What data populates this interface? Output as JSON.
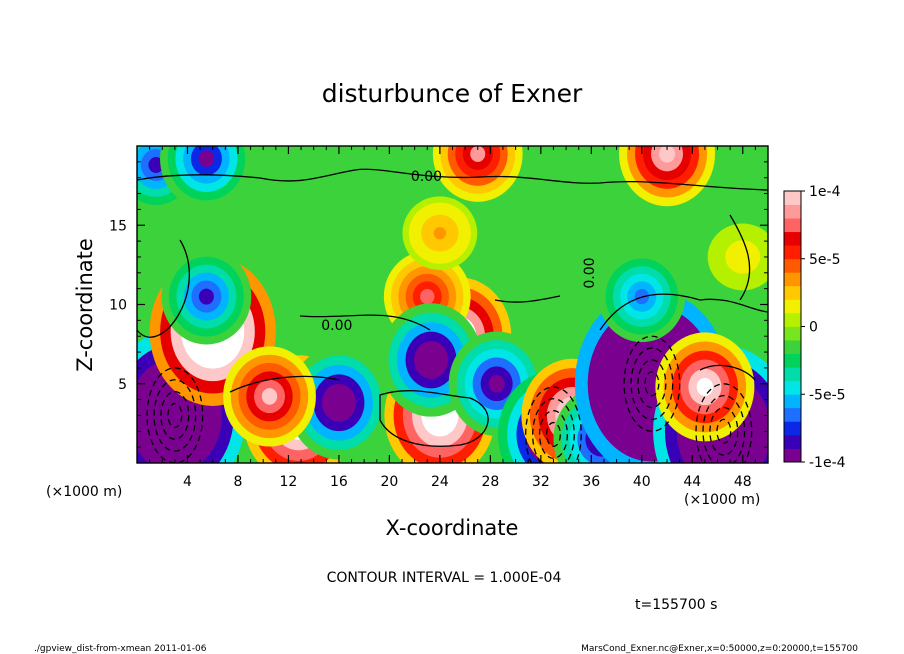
{
  "chart_data": {
    "type": "heatmap",
    "title": "disturbunce of Exner",
    "xlabel": "X-coordinate",
    "ylabel": "Z-coordinate",
    "x_unit": "(×1000 m)",
    "y_unit": "(×1000 m)",
    "xlim": [
      0,
      50
    ],
    "ylim": [
      0,
      20
    ],
    "x_ticks": [
      "4",
      "8",
      "12",
      "16",
      "20",
      "24",
      "28",
      "32",
      "36",
      "40",
      "44",
      "48"
    ],
    "x_tick_values": [
      4,
      8,
      12,
      16,
      20,
      24,
      28,
      32,
      36,
      40,
      44,
      48
    ],
    "y_ticks": [
      "5",
      "10",
      "15"
    ],
    "y_tick_values": [
      5,
      10,
      15
    ],
    "colorbar": {
      "min": -0.0001,
      "max": 0.0001,
      "labels": [
        "1e-4",
        "5e-5",
        "0",
        "-5e-5",
        "-1e-4"
      ],
      "label_values": [
        0.0001,
        5e-05,
        0,
        -5e-05,
        -0.0001
      ],
      "colors": [
        "#7a0090",
        "#3a00b8",
        "#0a28e6",
        "#1e6eff",
        "#00b4ff",
        "#00e6e6",
        "#00dcaa",
        "#00d25a",
        "#3cd23c",
        "#78e61e",
        "#b4f000",
        "#f0f000",
        "#ffc800",
        "#ff9600",
        "#ff5a00",
        "#ff1e00",
        "#e60000",
        "#ff6464",
        "#ff9a9a",
        "#ffc8c8"
      ]
    },
    "contour_labels": [
      "0.00",
      "0.00",
      "0.00"
    ],
    "contour_interval_text": "CONTOUR INTERVAL = 1.000E-04",
    "time_text": "t=155700 s",
    "features": [
      {
        "x": 3.0,
        "z": 3.0,
        "value": -0.00025
      },
      {
        "x": 6.0,
        "z": 8.3,
        "value": 0.0002
      },
      {
        "x": 5.5,
        "z": 10.5,
        "value": -8e-05
      },
      {
        "x": 1.5,
        "z": 18.8,
        "value": -8e-05
      },
      {
        "x": 5.5,
        "z": 19.2,
        "value": -9e-05
      },
      {
        "x": 12.8,
        "z": 2.8,
        "value": 0.00015
      },
      {
        "x": 16.0,
        "z": 3.8,
        "value": -0.00012
      },
      {
        "x": 10.5,
        "z": 4.2,
        "value": 9e-05
      },
      {
        "x": 24.0,
        "z": 3.0,
        "value": 0.00015
      },
      {
        "x": 25.5,
        "z": 8.0,
        "value": 0.00013
      },
      {
        "x": 23.0,
        "z": 10.5,
        "value": 7e-05
      },
      {
        "x": 23.3,
        "z": 6.5,
        "value": -0.00012
      },
      {
        "x": 28.5,
        "z": 5.0,
        "value": -0.0001
      },
      {
        "x": 33.0,
        "z": 1.8,
        "value": -0.00015
      },
      {
        "x": 34.5,
        "z": 3.0,
        "value": 0.00012
      },
      {
        "x": 36.8,
        "z": 1.5,
        "value": -0.0001
      },
      {
        "x": 40.8,
        "z": 5.0,
        "value": -0.00035
      },
      {
        "x": 40.0,
        "z": 10.5,
        "value": -7e-05
      },
      {
        "x": 46.5,
        "z": 2.0,
        "value": -0.00025
      },
      {
        "x": 45.0,
        "z": 4.8,
        "value": 0.00011
      },
      {
        "x": 42.0,
        "z": 19.5,
        "value": 0.0001
      },
      {
        "x": 27.0,
        "z": 19.5,
        "value": 8e-05
      },
      {
        "x": 24.0,
        "z": 14.5,
        "value": 3e-05
      },
      {
        "x": 48.0,
        "z": 13.0,
        "value": 1.5e-05
      }
    ]
  },
  "footer": {
    "left": "./gpview_dist-from-xmean  2011-01-06",
    "right": "MarsCond_Exner.nc@Exner,x=0:50000,z=0:20000,t=155700"
  }
}
